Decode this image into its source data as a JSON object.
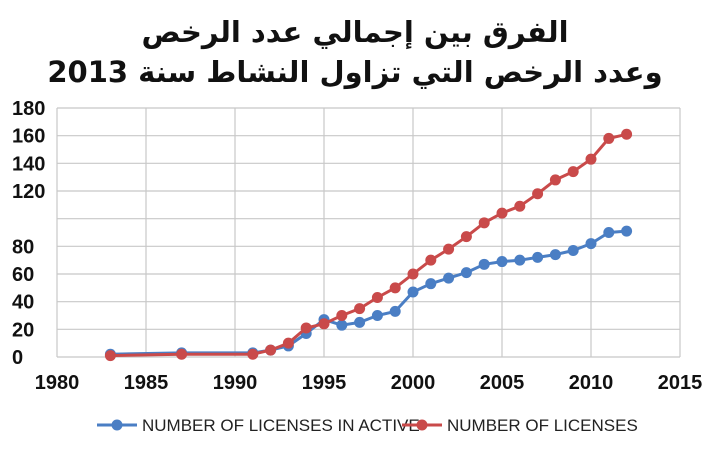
{
  "chart_data": {
    "type": "line",
    "title_lines": [
      "الفرق بين إجمالي عدد الرخص",
      "وعدد الرخص التي تزاول النشاط سنة 2013"
    ],
    "xlabel": "",
    "ylabel": "",
    "xlim": [
      1980,
      2015
    ],
    "ylim": [
      0,
      180
    ],
    "x_ticks": [
      "1980",
      "1985",
      "1990",
      "1995",
      "2000",
      "2005",
      "2010",
      "2015"
    ],
    "y_ticks": [
      "0",
      "20",
      "40",
      "60",
      "80",
      "120",
      "140",
      "160",
      "180"
    ],
    "y_tick_values": [
      0,
      20,
      40,
      60,
      80,
      120,
      140,
      160,
      180
    ],
    "grid": true,
    "legend_position": "bottom",
    "series": [
      {
        "name": "NUMBER OF LICENSES IN ACTIVE",
        "color": "#4a7ec4",
        "points": [
          [
            1983,
            2
          ],
          [
            1987,
            3
          ],
          [
            1991,
            3
          ],
          [
            1992,
            5
          ],
          [
            1993,
            8
          ],
          [
            1994,
            17
          ],
          [
            1995,
            27
          ],
          [
            1996,
            23
          ],
          [
            1997,
            25
          ],
          [
            1998,
            30
          ],
          [
            1999,
            33
          ],
          [
            2000,
            47
          ],
          [
            2001,
            53
          ],
          [
            2002,
            57
          ],
          [
            2003,
            61
          ],
          [
            2004,
            67
          ],
          [
            2005,
            69
          ],
          [
            2006,
            70
          ],
          [
            2007,
            72
          ],
          [
            2008,
            74
          ],
          [
            2009,
            77
          ],
          [
            2010,
            82
          ],
          [
            2011,
            90
          ],
          [
            2012,
            91
          ]
        ]
      },
      {
        "name": "NUMBER OF LICENSES",
        "color": "#c94a4a",
        "points": [
          [
            1983,
            1
          ],
          [
            1987,
            2
          ],
          [
            1991,
            2
          ],
          [
            1992,
            5
          ],
          [
            1993,
            10
          ],
          [
            1994,
            21
          ],
          [
            1995,
            24
          ],
          [
            1996,
            30
          ],
          [
            1997,
            35
          ],
          [
            1998,
            43
          ],
          [
            1999,
            50
          ],
          [
            2000,
            60
          ],
          [
            2001,
            70
          ],
          [
            2002,
            78
          ],
          [
            2003,
            87
          ],
          [
            2004,
            97
          ],
          [
            2005,
            104
          ],
          [
            2006,
            109
          ],
          [
            2007,
            118
          ],
          [
            2008,
            128
          ],
          [
            2009,
            134
          ],
          [
            2010,
            143
          ],
          [
            2011,
            158
          ],
          [
            2012,
            161
          ]
        ]
      }
    ]
  }
}
